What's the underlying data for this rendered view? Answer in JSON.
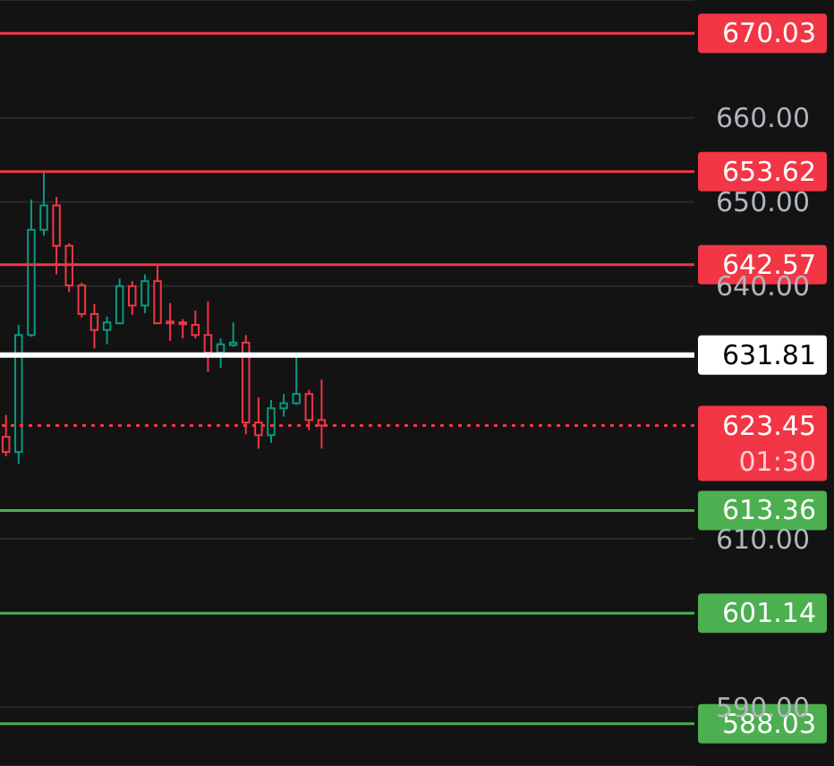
{
  "chart_data": {
    "type": "candlestick",
    "categories": [
      null,
      null,
      null,
      null,
      null,
      null,
      null,
      null,
      null,
      null,
      null,
      null,
      null,
      null,
      null,
      null,
      null,
      null,
      null,
      null,
      null,
      null,
      null,
      null,
      null,
      null,
      null,
      null,
      null,
      null,
      null,
      null,
      null,
      null,
      null,
      null,
      null,
      null,
      null,
      null,
      null,
      null,
      null,
      null,
      null,
      null,
      null,
      null,
      null,
      null,
      null,
      null,
      null,
      null,
      null
    ],
    "ohlc": [
      [
        622.1,
        624.7,
        619.8,
        620.3
      ],
      [
        620.3,
        635.4,
        618.9,
        634.2
      ],
      [
        634.2,
        650.3,
        634.0,
        646.7
      ],
      [
        646.7,
        653.6,
        646.0,
        649.6
      ],
      [
        649.6,
        650.6,
        641.4,
        644.8
      ],
      [
        644.8,
        645.1,
        639.3,
        640.1
      ],
      [
        640.1,
        640.4,
        636.3,
        636.7
      ],
      [
        636.7,
        637.9,
        632.6,
        634.8
      ],
      [
        634.8,
        636.4,
        633.1,
        635.7
      ],
      [
        635.6,
        640.9,
        635.5,
        640.0
      ],
      [
        640.0,
        640.6,
        636.6,
        637.7
      ],
      [
        637.7,
        641.4,
        636.8,
        640.6
      ],
      [
        640.6,
        642.5,
        635.5,
        635.6
      ],
      [
        635.8,
        638.0,
        633.5,
        635.6
      ],
      [
        635.7,
        636.1,
        633.8,
        635.5
      ],
      [
        635.4,
        637.1,
        633.8,
        634.2
      ],
      [
        634.2,
        638.2,
        629.8,
        632.1
      ],
      [
        632.1,
        633.8,
        630.3,
        633.1
      ],
      [
        633.0,
        635.7,
        632.8,
        633.3
      ],
      [
        633.3,
        634.2,
        622.4,
        623.8
      ],
      [
        623.8,
        626.8,
        620.7,
        622.3
      ],
      [
        622.3,
        626.5,
        621.4,
        625.5
      ],
      [
        625.5,
        627.2,
        624.5,
        626.1
      ],
      [
        626.1,
        631.7,
        625.9,
        627.2
      ],
      [
        627.2,
        627.7,
        622.9,
        624.1
      ],
      [
        624.1,
        628.9,
        620.7,
        623.45
      ],
      null,
      null,
      null,
      null,
      null,
      null,
      null,
      null,
      null,
      null,
      null,
      null,
      null,
      null,
      null,
      null,
      null,
      null,
      null,
      null,
      null,
      null,
      null,
      null,
      null,
      null,
      null,
      null,
      null
    ],
    "colors": [
      "#f23645",
      "#089981",
      "#089981",
      "#089981",
      "#f23645",
      "#f23645",
      "#f23645",
      "#f23645",
      "#089981",
      "#089981",
      "#f23645",
      "#089981",
      "#f23645",
      "#f23645",
      "#f23645",
      "#f23645",
      "#f23645",
      "#089981",
      "#089981",
      "#f23645",
      "#f23645",
      "#089981",
      "#089981",
      "#089981",
      "#f23645",
      "#f23645",
      null,
      null,
      null,
      null,
      null,
      null,
      null,
      null,
      null,
      null,
      null,
      null,
      null,
      null,
      null,
      null,
      null,
      null,
      null,
      null,
      null,
      null,
      null,
      null,
      null,
      null,
      null,
      null,
      null
    ],
    "ylim": [
      583,
      674
    ],
    "yticks": [
      {
        "value": 590,
        "label": "590.00"
      },
      {
        "value": 610,
        "label": "610.00"
      },
      {
        "value": 640,
        "label": "640.00"
      },
      {
        "value": 650,
        "label": "650.00"
      },
      {
        "value": 660,
        "label": "660.00"
      }
    ],
    "grid": "y",
    "tick_labels": "y",
    "ref_lines": [
      {
        "axis": "y",
        "value": 670.03,
        "label": "670.03",
        "color": "#f23645",
        "line_style": "solid"
      },
      {
        "axis": "y",
        "value": 653.62,
        "label": "653.62",
        "color": "#f23645",
        "line_style": "solid"
      },
      {
        "axis": "y",
        "value": 642.57,
        "label": "642.57",
        "color": "#f23645",
        "line_style": "solid"
      },
      {
        "axis": "y",
        "value": 631.81,
        "label": "631.81",
        "color": "#ffffff",
        "line_style": "solid"
      },
      {
        "axis": "y",
        "value": 623.45,
        "label": "623.45",
        "color": "#f23645",
        "line_style": "dotted"
      },
      {
        "axis": "y",
        "value": 613.36,
        "label": "613.36",
        "color": "#4caf50",
        "line_style": "solid"
      },
      {
        "axis": "y",
        "value": 601.14,
        "label": "601.14",
        "color": "#4caf50",
        "line_style": "solid"
      },
      {
        "axis": "y",
        "value": 588.03,
        "label": "588.03",
        "color": "#4caf50",
        "line_style": "solid"
      }
    ],
    "annotations": [
      "01:30"
    ]
  }
}
